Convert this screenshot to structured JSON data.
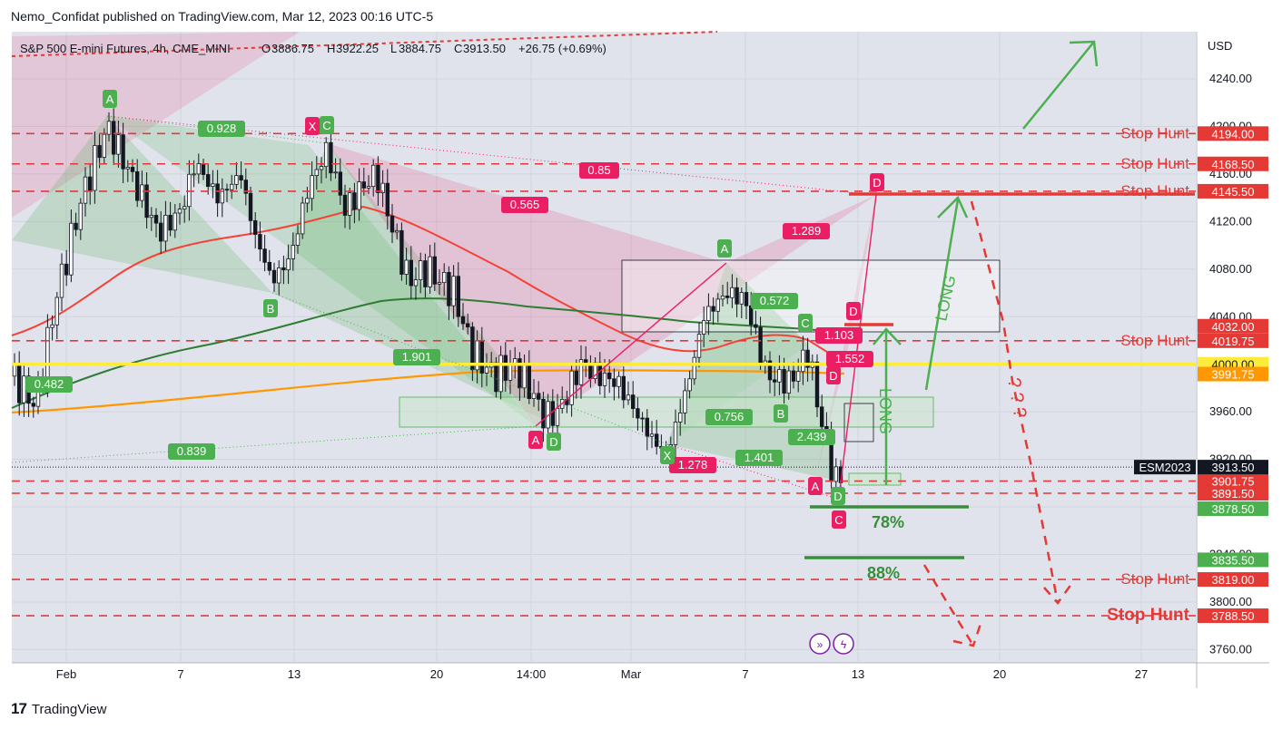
{
  "header": {
    "publish_line": "Nemo_Confidat published on TradingView.com, Mar 12, 2023 00:16 UTC-5"
  },
  "footer": {
    "brand": "TradingView",
    "logo_glyph": "17"
  },
  "colors": {
    "bull": "#4caf50",
    "bear": "#e91e63",
    "stop_line": "#e53935",
    "ma_red": "#f44336",
    "ma_green": "#2e7d32",
    "ma_orange": "#ff9800",
    "yellow": "#ffeb3b",
    "pane_bg": "#e0e3eb"
  },
  "chart_data": {
    "type": "candlestick",
    "title": "S&P 500 E-mini Futures, 4h, CME_MINI",
    "ohlc_text": {
      "O": "3886.75",
      "H": "3922.25",
      "L": "3884.75",
      "C": "3913.50",
      "change": "+26.75 (+0.69%)"
    },
    "currency": "USD",
    "ylim": [
      3745,
      4275
    ],
    "y_ticks": [
      4240,
      4200,
      4160,
      4120,
      4080,
      4040,
      4000,
      3960,
      3920,
      3880,
      3840,
      3800,
      3760
    ],
    "y_tick_labels": [
      "4240.00",
      "4200.00",
      "4160.00",
      "4120.00",
      "4080.00",
      "4040.00",
      "4000.00",
      "3960.00",
      "3920.00",
      "3880.00",
      "3840.00",
      "3800.00",
      "3760.00"
    ],
    "x_ticks": [
      "Feb",
      "7",
      "13",
      "20",
      "14:00",
      "Mar",
      "7",
      "13",
      "20",
      "27"
    ],
    "last_price": {
      "symbol": "ESM2023",
      "value": 3913.5,
      "label": "3913.50"
    },
    "stop_hunts": [
      {
        "text": "Stop Hunt",
        "value": 4194.0,
        "label": "4194.00"
      },
      {
        "text": "Stop Hunt",
        "value": 4168.5,
        "label": "4168.50"
      },
      {
        "text": "Stop Hunt",
        "value": 4145.5,
        "label": "4145.50"
      },
      {
        "text": "Stop Hunt",
        "value": 4019.75,
        "label": "4019.75"
      },
      {
        "text": "Stop Hunt",
        "value": 3819.0,
        "label": "3819.00"
      },
      {
        "text": "Stop Hunt",
        "value": 3788.5,
        "label": "3788.50"
      }
    ],
    "price_tags": [
      {
        "value": 4032.0,
        "label": "4032.00",
        "color": "#e53935"
      },
      {
        "value": 4000.0,
        "label": "4000.00",
        "color": "#ffeb3b"
      },
      {
        "value": 3991.75,
        "label": "3991.75",
        "color": "#ff9800"
      },
      {
        "value": 3901.75,
        "label": "3901.75",
        "color": "#e53935"
      },
      {
        "value": 3891.5,
        "label": "3891.50",
        "color": "#e53935"
      },
      {
        "value": 3878.5,
        "label": "3878.50",
        "color": "#4caf50"
      },
      {
        "value": 3835.5,
        "label": "3835.50",
        "color": "#4caf50"
      }
    ],
    "extra_dashed_levels": [
      3901.75,
      3891.5
    ],
    "pattern_labels": [
      {
        "text": "0.928",
        "color": "bull"
      },
      {
        "text": "0.482",
        "color": "bull"
      },
      {
        "text": "0.839",
        "color": "bull"
      },
      {
        "text": "1.901",
        "color": "bull"
      },
      {
        "text": "0.572",
        "color": "bull"
      },
      {
        "text": "0.756",
        "color": "bull"
      },
      {
        "text": "1.401",
        "color": "bull"
      },
      {
        "text": "2.439",
        "color": "bull"
      },
      {
        "text": "0.85",
        "color": "bear"
      },
      {
        "text": "0.565",
        "color": "bear"
      },
      {
        "text": "1.289",
        "color": "bear"
      },
      {
        "text": "1.278",
        "color": "bear"
      },
      {
        "text": "1.103",
        "color": "bear"
      },
      {
        "text": "1.552",
        "color": "bear"
      }
    ],
    "point_labels": [
      {
        "text": "A",
        "color": "bull"
      },
      {
        "text": "B",
        "color": "bull"
      },
      {
        "text": "C",
        "color": "bull"
      },
      {
        "text": "X",
        "color": "bear"
      },
      {
        "text": "D",
        "color": "bull"
      },
      {
        "text": "A",
        "color": "bear"
      },
      {
        "text": "X",
        "color": "bull"
      },
      {
        "text": "A",
        "color": "bull"
      },
      {
        "text": "B",
        "color": "bull"
      },
      {
        "text": "C",
        "color": "bull"
      },
      {
        "text": "D",
        "color": "bull"
      },
      {
        "text": "D",
        "color": "bear"
      },
      {
        "text": "D",
        "color": "bear"
      },
      {
        "text": "A",
        "color": "bear"
      },
      {
        "text": "C",
        "color": "bear"
      },
      {
        "text": "D",
        "color": "bear"
      }
    ],
    "annotations": [
      {
        "text": "78%",
        "color": "#388e3c"
      },
      {
        "text": "88%",
        "color": "#388e3c"
      },
      {
        "text": "LONG",
        "color": "#4caf50"
      },
      {
        "text": "LONG",
        "color": "#4caf50"
      },
      {
        "text": "? ? ?",
        "color": "#e53935"
      }
    ]
  }
}
